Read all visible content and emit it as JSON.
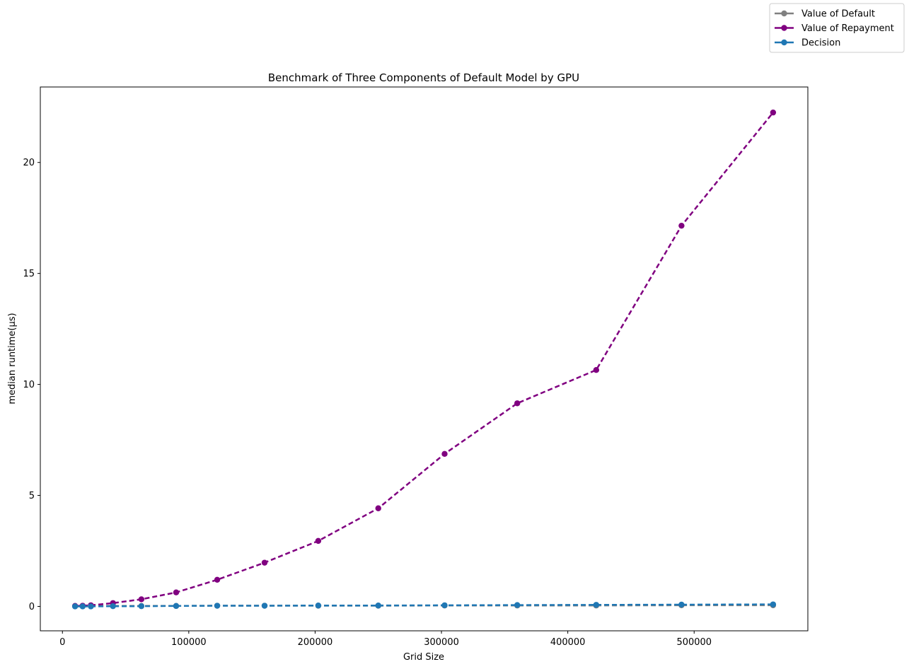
{
  "chart_data": {
    "type": "line",
    "title": "Benchmark of Three Components of Default Model by GPU",
    "xlabel": "Grid Size",
    "ylabel": "median runtime(μs)",
    "xlim": [
      -17500,
      590000
    ],
    "ylim": [
      -1.1,
      23.4
    ],
    "x_ticks": [
      0,
      100000,
      200000,
      300000,
      400000,
      500000
    ],
    "y_ticks": [
      0,
      5,
      10,
      15,
      20
    ],
    "grid": false,
    "legend_position": "top-right",
    "line_style": "dashed",
    "series": [
      {
        "name": "Value of Default",
        "color": "#808080",
        "x": [
          10000,
          16000,
          22500,
          40000,
          62500,
          90000,
          122500,
          160000,
          202500,
          250000,
          302500,
          360000,
          422500,
          490000,
          562500
        ],
        "values": [
          0.02,
          0.02,
          0.02,
          0.02,
          0.02,
          0.02,
          0.03,
          0.03,
          0.03,
          0.03,
          0.04,
          0.04,
          0.04,
          0.05,
          0.05
        ]
      },
      {
        "name": "Value of Repayment",
        "color": "#800080",
        "x": [
          10000,
          16000,
          22500,
          40000,
          62500,
          90000,
          122500,
          160000,
          202500,
          250000,
          302500,
          360000,
          422500,
          490000,
          562500
        ],
        "values": [
          0.02,
          0.03,
          0.05,
          0.15,
          0.32,
          0.63,
          1.2,
          1.97,
          2.95,
          4.42,
          6.87,
          9.15,
          10.65,
          17.15,
          22.25
        ]
      },
      {
        "name": "Decision",
        "color": "#1f77b4",
        "x": [
          10000,
          16000,
          22500,
          40000,
          62500,
          90000,
          122500,
          160000,
          202500,
          250000,
          302500,
          360000,
          422500,
          490000,
          562500
        ],
        "values": [
          0.0,
          0.0,
          0.0,
          0.01,
          0.01,
          0.02,
          0.03,
          0.03,
          0.04,
          0.04,
          0.05,
          0.06,
          0.07,
          0.08,
          0.09
        ]
      }
    ]
  }
}
